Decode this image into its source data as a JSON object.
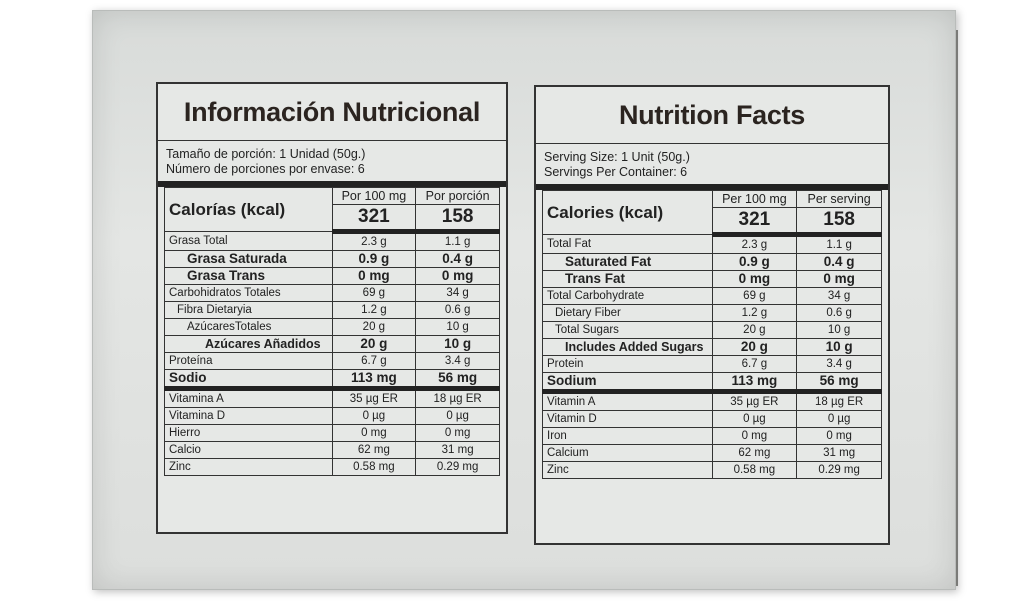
{
  "es": {
    "title": "Información Nutricional",
    "serving_size": "Tamaño de porción: 1 Unidad (50g.)",
    "servings_per_container": "Número de porciones por envase: 6",
    "calories_label": "Calorías (kcal)",
    "col1": "Por 100 mg",
    "col2": "Por porción",
    "cal100": "321",
    "calserv": "158",
    "rows": [
      {
        "label": "Grasa Total",
        "v1": "2.3 g",
        "v2": "1.1 g"
      },
      {
        "label": "Grasa Saturada",
        "v1": "0.9 g",
        "v2": "0.4 g"
      },
      {
        "label": "Grasa Trans",
        "v1": "0 mg",
        "v2": "0 mg"
      },
      {
        "label": "Carbohidratos Totales",
        "v1": "69 g",
        "v2": "34 g"
      },
      {
        "label": "Fibra Dietaryia",
        "v1": "1.2 g",
        "v2": "0.6 g"
      },
      {
        "label": "AzúcaresTotales",
        "v1": "20 g",
        "v2": "10 g"
      },
      {
        "label": "Azúcares Añadidos",
        "v1": "20 g",
        "v2": "10 g"
      },
      {
        "label": "Proteína",
        "v1": "6.7 g",
        "v2": "3.4 g"
      },
      {
        "label": "Sodio",
        "v1": "113 mg",
        "v2": "56 mg"
      },
      {
        "label": "Vitamina A",
        "v1": "35 µg ER",
        "v2": "18 µg ER"
      },
      {
        "label": "Vitamina D",
        "v1": "0 µg",
        "v2": "0 µg"
      },
      {
        "label": "Hierro",
        "v1": "0 mg",
        "v2": "0 mg"
      },
      {
        "label": "Calcio",
        "v1": "62 mg",
        "v2": "31 mg"
      },
      {
        "label": "Zinc",
        "v1": "0.58 mg",
        "v2": "0.29 mg"
      }
    ]
  },
  "en": {
    "title": "Nutrition Facts",
    "serving_size": "Serving Size: 1 Unit  (50g.)",
    "servings_per_container": "Servings Per Container: 6",
    "calories_label": "Calories (kcal)",
    "col1": "Per 100 mg",
    "col2": "Per serving",
    "cal100": "321",
    "calserv": "158",
    "rows": [
      {
        "label": "Total Fat",
        "v1": "2.3 g",
        "v2": "1.1 g"
      },
      {
        "label": "Saturated Fat",
        "v1": "0.9 g",
        "v2": "0.4 g"
      },
      {
        "label": "Trans Fat",
        "v1": "0 mg",
        "v2": "0 mg"
      },
      {
        "label": "Total Carbohydrate",
        "v1": "69 g",
        "v2": "34 g"
      },
      {
        "label": "Dietary Fiber",
        "v1": "1.2 g",
        "v2": "0.6 g"
      },
      {
        "label": "Total Sugars",
        "v1": "20 g",
        "v2": "10 g"
      },
      {
        "label": "Includes Added Sugars",
        "v1": "20 g",
        "v2": "10 g"
      },
      {
        "label": "Protein",
        "v1": "6.7 g",
        "v2": "3.4 g"
      },
      {
        "label": "Sodium",
        "v1": "113 mg",
        "v2": "56 mg"
      },
      {
        "label": "Vitamin A",
        "v1": "35 µg ER",
        "v2": "18 µg ER"
      },
      {
        "label": "Vitamin D",
        "v1": "0 µg",
        "v2": "0 µg"
      },
      {
        "label": "Iron",
        "v1": "0 mg",
        "v2": "0 mg"
      },
      {
        "label": "Calcium",
        "v1": "62 mg",
        "v2": "31 mg"
      },
      {
        "label": "Zinc",
        "v1": "0.58 mg",
        "v2": "0.29 mg"
      }
    ]
  }
}
